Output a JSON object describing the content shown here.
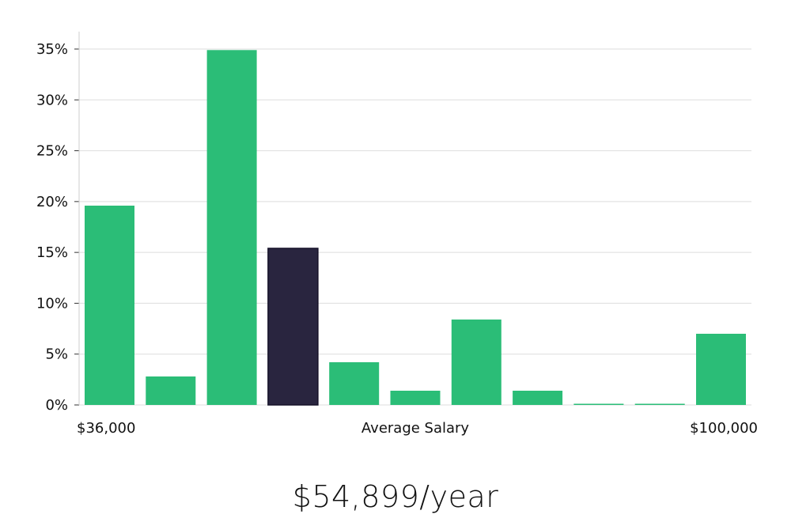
{
  "chart_data": {
    "type": "bar",
    "title": "",
    "xlabel": "Average Salary",
    "ylabel": "",
    "x_min_label": "$36,000",
    "x_max_label": "$100,000",
    "ylim": [
      0,
      35
    ],
    "yticks": [
      0,
      5,
      10,
      15,
      20,
      25,
      30,
      35
    ],
    "ytick_labels": [
      "0%",
      "5%",
      "10%",
      "15%",
      "20%",
      "25%",
      "30%",
      "35%"
    ],
    "grid": true,
    "values": [
      19.6,
      2.8,
      34.9,
      15.4,
      4.2,
      1.4,
      8.4,
      1.4,
      0.1,
      0.1,
      7.0
    ],
    "highlight_index": 3,
    "colors": {
      "bar": "#2bbd77",
      "highlight": "#29253f",
      "grid": "#dddddd",
      "axis": "#cccccc"
    }
  },
  "caption": {
    "salary": "$54,899/year"
  }
}
